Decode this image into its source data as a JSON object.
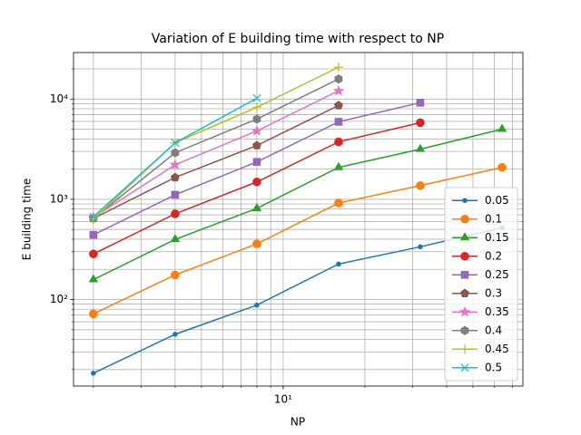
{
  "chart_data": {
    "type": "line",
    "title": "Variation of E building time with respect to NP",
    "xlabel": "NP",
    "ylabel": "E building time",
    "xscale": "log",
    "yscale": "log",
    "xlim": [
      1.69,
      76.4
    ],
    "ylim": [
      13.7,
      29100
    ],
    "xticks": [
      {
        "value": 10,
        "label": "10¹"
      }
    ],
    "yticks": [
      {
        "value": 100,
        "label": "10²"
      },
      {
        "value": 1000,
        "label": "10³"
      },
      {
        "value": 10000,
        "label": "10⁴"
      }
    ],
    "xminor": [
      2,
      3,
      4,
      5,
      6,
      7,
      8,
      9,
      20,
      30,
      40,
      50,
      60,
      70
    ],
    "yminor": [
      20,
      30,
      40,
      50,
      60,
      70,
      80,
      90,
      200,
      300,
      400,
      500,
      600,
      700,
      800,
      900,
      2000,
      3000,
      4000,
      5000,
      6000,
      7000,
      8000,
      9000,
      20000
    ],
    "grid": true,
    "legend": "lower right",
    "series": [
      {
        "name": "0.05",
        "color": "#1f77b4",
        "marker": "point",
        "x": [
          2,
          4,
          8,
          16,
          32,
          64
        ],
        "values": [
          18.4,
          45,
          88,
          226,
          336,
          520
        ]
      },
      {
        "name": "0.1",
        "color": "#ff7f0e",
        "marker": "circle",
        "x": [
          2,
          4,
          8,
          16,
          32,
          64
        ],
        "values": [
          72,
          176,
          359,
          920,
          1370,
          2080
        ]
      },
      {
        "name": "0.15",
        "color": "#2ca02c",
        "marker": "triangle",
        "x": [
          2,
          4,
          8,
          16,
          32,
          64
        ],
        "values": [
          158,
          398,
          811,
          2080,
          3160,
          5010
        ]
      },
      {
        "name": "0.2",
        "color": "#d62728",
        "marker": "circle",
        "x": [
          2,
          4,
          8,
          16,
          32
        ],
        "values": [
          285,
          716,
          1490,
          3740,
          5810
        ]
      },
      {
        "name": "0.25",
        "color": "#9467bd",
        "marker": "square",
        "x": [
          2,
          4,
          8,
          16,
          32
        ],
        "values": [
          442,
          1110,
          2360,
          5930,
          9200
        ]
      },
      {
        "name": "0.3",
        "color": "#8c564b",
        "marker": "pentagon",
        "x": [
          2,
          4,
          8,
          16
        ],
        "values": [
          644,
          1650,
          3440,
          8630
        ]
      },
      {
        "name": "0.35",
        "color": "#e377c2",
        "marker": "star",
        "x": [
          2,
          4,
          8,
          16
        ],
        "values": [
          660,
          2210,
          4810,
          12080
        ]
      },
      {
        "name": "0.4",
        "color": "#7f7f7f",
        "marker": "hexagon",
        "x": [
          2,
          4,
          8,
          16
        ],
        "values": [
          644,
          2910,
          6310,
          15850
        ]
      },
      {
        "name": "0.45",
        "color": "#bcbd22",
        "marker": "plus",
        "x": [
          2,
          4,
          8,
          16
        ],
        "values": [
          634,
          3660,
          8290,
          20800
        ]
      },
      {
        "name": "0.5",
        "color": "#17becf",
        "marker": "x",
        "x": [
          2,
          4,
          8
        ],
        "values": [
          670,
          3660,
          10200
        ]
      }
    ]
  }
}
